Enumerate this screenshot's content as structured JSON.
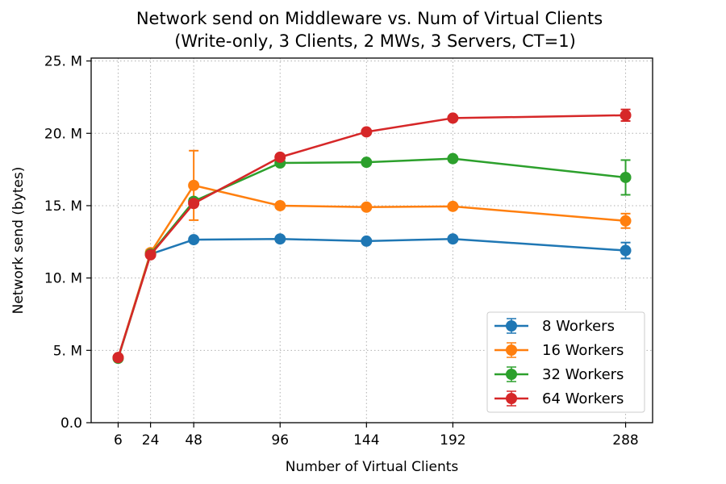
{
  "chart_data": {
    "type": "line",
    "title_lines": [
      "Network send on Middleware vs. Num of Virtual Clients",
      "(Write-only, 3 Clients, 2 MWs, 3 Servers, CT=1)"
    ],
    "xlabel": "Number of Virtual Clients",
    "ylabel": "Network send (bytes)",
    "x": [
      6,
      24,
      48,
      96,
      144,
      192,
      288
    ],
    "x_tick_labels": [
      "6",
      "24",
      "48",
      "96",
      "144",
      "192",
      "288"
    ],
    "xlim": [
      -9,
      303
    ],
    "ylim": [
      0,
      25200000
    ],
    "y_ticks": [
      0,
      5000000,
      10000000,
      15000000,
      20000000,
      25000000
    ],
    "y_tick_labels": [
      "0.0",
      "5. M",
      "10. M",
      "15. M",
      "20. M",
      "25. M"
    ],
    "grid": true,
    "legend_position": "lower-right",
    "series": [
      {
        "name": "8 Workers",
        "color": "#1f77b4",
        "values": [
          4500000,
          11650000,
          12650000,
          12700000,
          12550000,
          12700000,
          11900000
        ],
        "errors": [
          80000,
          150000,
          100000,
          100000,
          100000,
          120000,
          550000
        ]
      },
      {
        "name": "16 Workers",
        "color": "#ff7f0e",
        "values": [
          4500000,
          11750000,
          16400000,
          15000000,
          14900000,
          14950000,
          13950000
        ],
        "errors": [
          80000,
          200000,
          2400000,
          120000,
          120000,
          120000,
          500000
        ]
      },
      {
        "name": "32 Workers",
        "color": "#2ca02c",
        "values": [
          4450000,
          11650000,
          15300000,
          17950000,
          18000000,
          18250000,
          16950000
        ],
        "errors": [
          80000,
          150000,
          200000,
          150000,
          120000,
          120000,
          1200000
        ]
      },
      {
        "name": "64 Workers",
        "color": "#d62728",
        "values": [
          4500000,
          11600000,
          15150000,
          18350000,
          20100000,
          21050000,
          21250000
        ],
        "errors": [
          80000,
          150000,
          150000,
          150000,
          120000,
          150000,
          400000
        ]
      }
    ]
  }
}
